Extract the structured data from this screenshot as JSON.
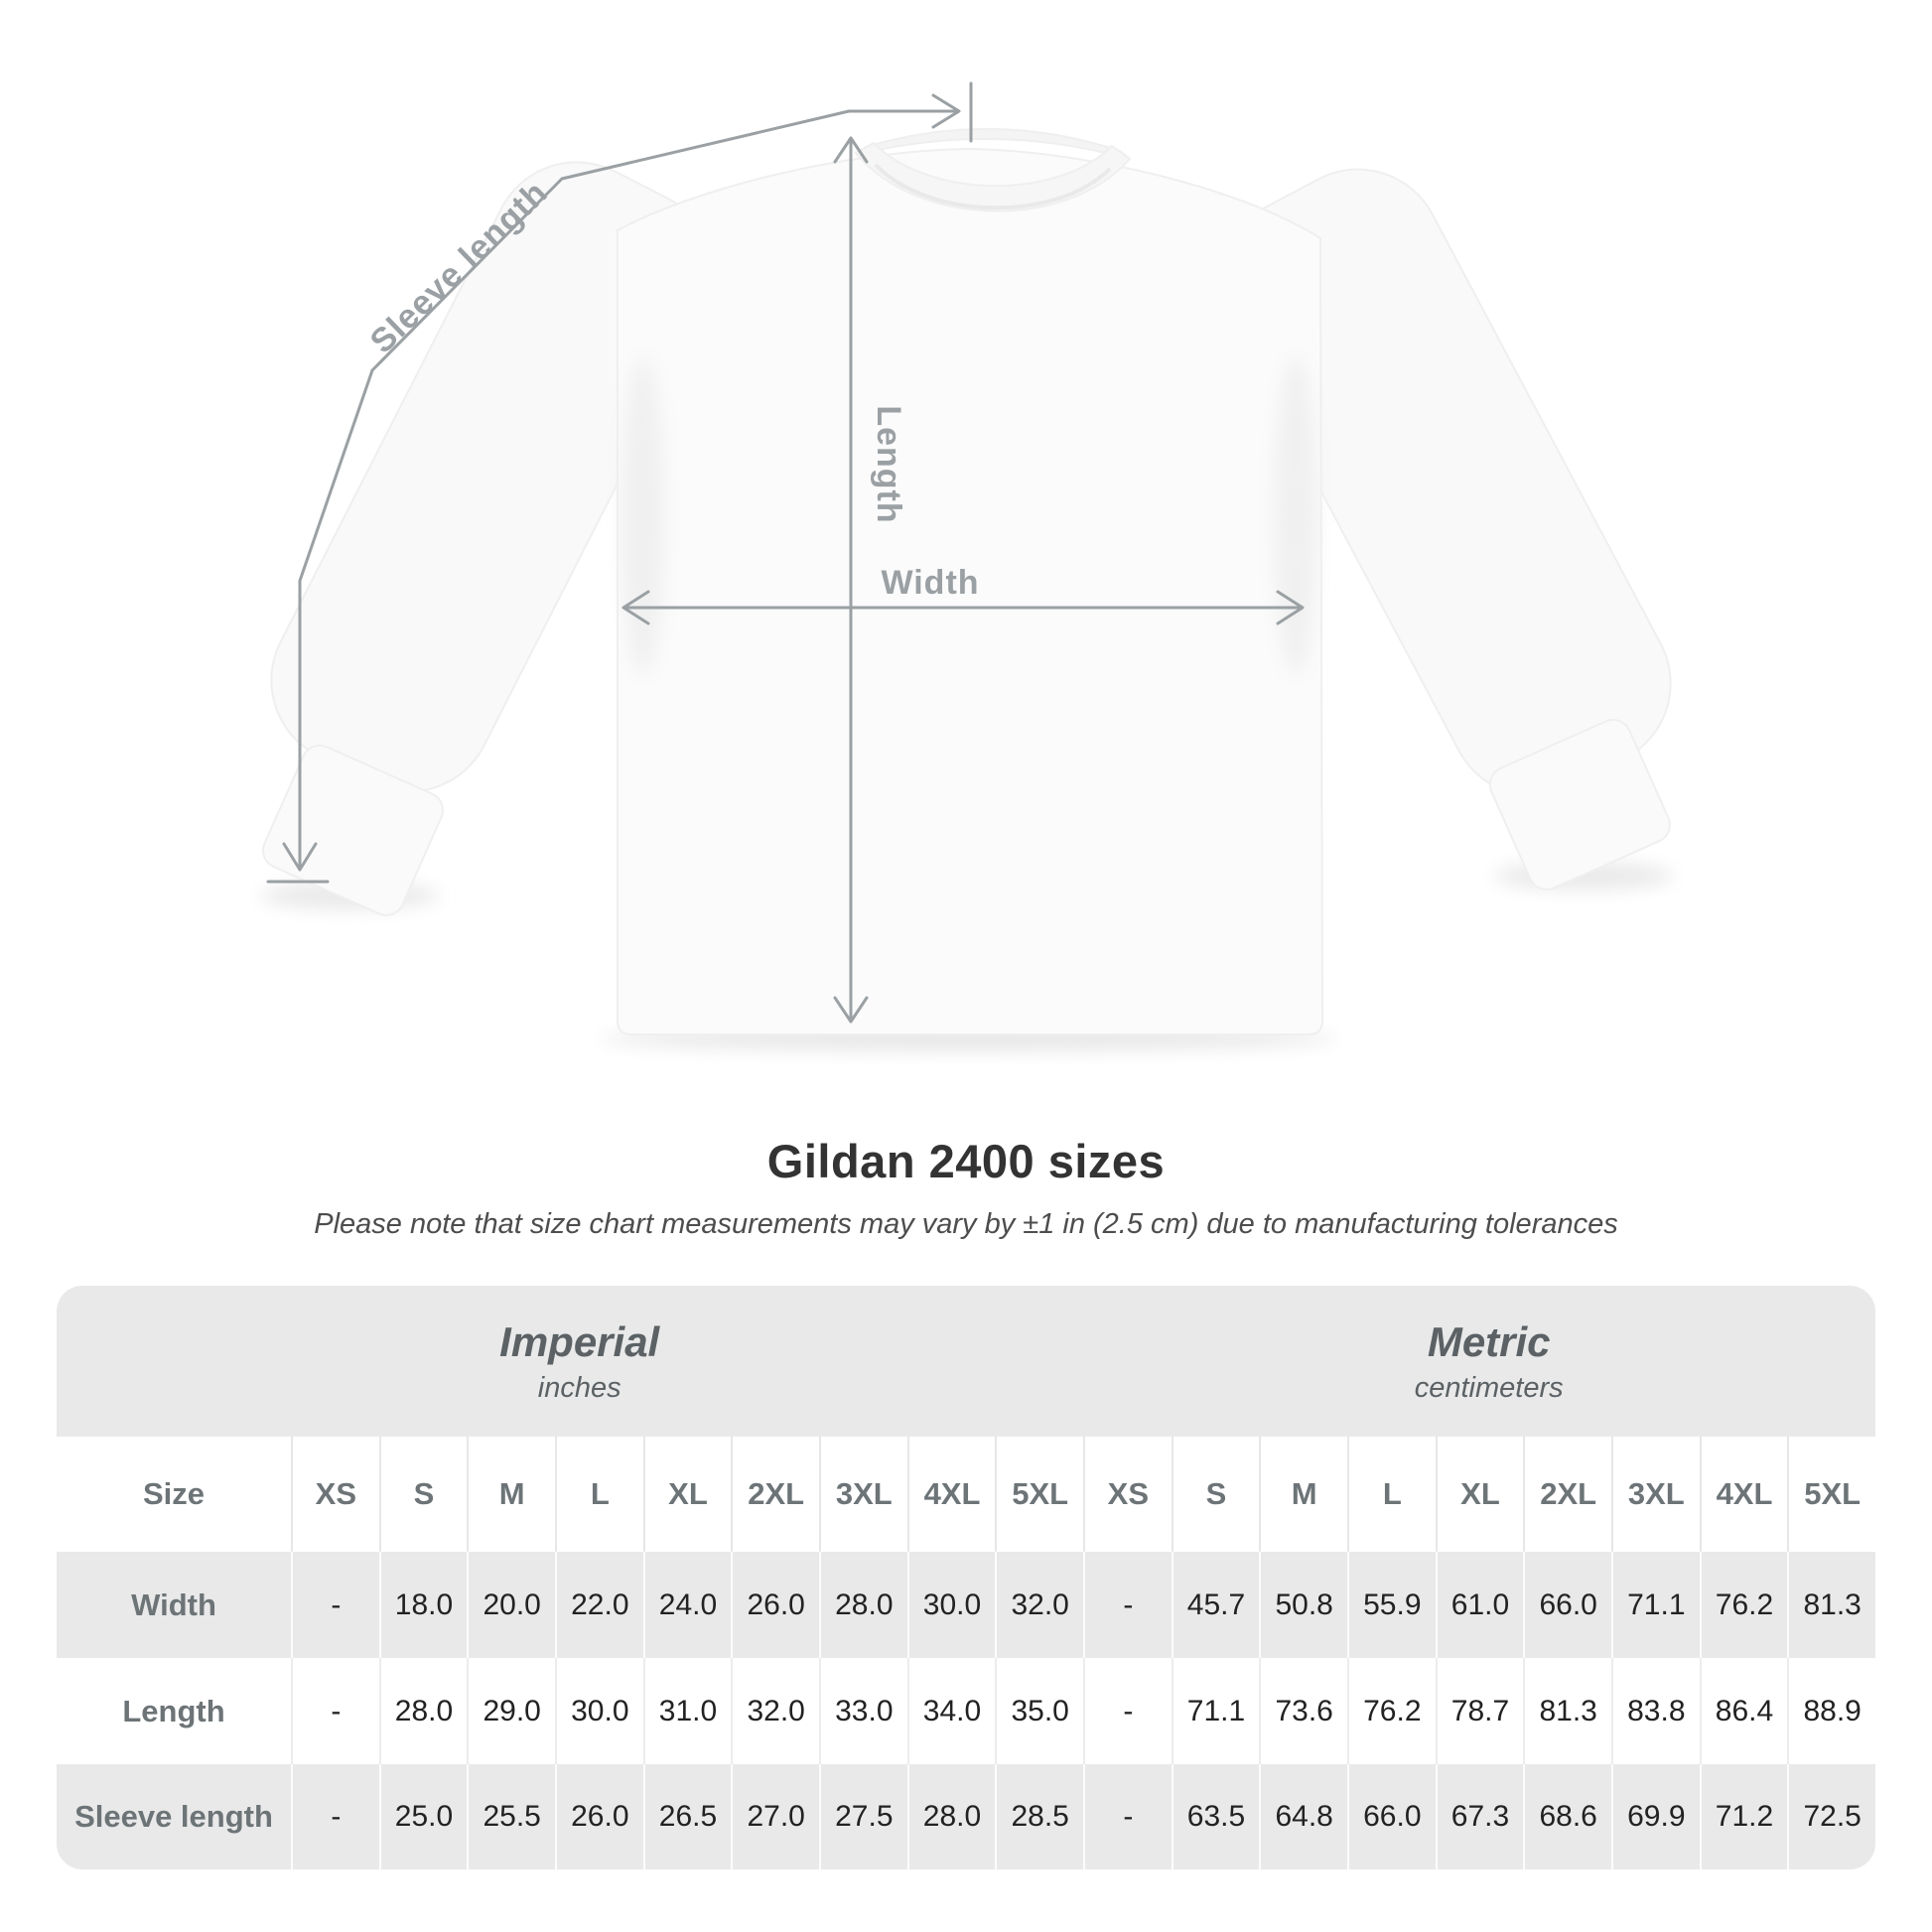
{
  "diagram": {
    "labels": {
      "sleeve_length": "Sleeve length",
      "length": "Length",
      "width": "Width"
    },
    "annotation_color": "#9aa0a3"
  },
  "heading": {
    "title": "Gildan 2400 sizes",
    "note": "Please note that size chart measurements may vary by ±1 in (2.5 cm) due to manufacturing tolerances"
  },
  "size_table": {
    "band_bg_color": "#e9e9e9",
    "unit_groups": [
      {
        "name": "Imperial",
        "unit": "inches"
      },
      {
        "name": "Metric",
        "unit": "centimeters"
      }
    ],
    "size_col_header": "Size",
    "sizes": [
      "XS",
      "S",
      "M",
      "L",
      "XL",
      "2XL",
      "3XL",
      "4XL",
      "5XL"
    ],
    "rows": [
      {
        "label": "Width",
        "imperial": [
          "-",
          "18.0",
          "20.0",
          "22.0",
          "24.0",
          "26.0",
          "28.0",
          "30.0",
          "32.0"
        ],
        "metric": [
          "-",
          "45.7",
          "50.8",
          "55.9",
          "61.0",
          "66.0",
          "71.1",
          "76.2",
          "81.3"
        ]
      },
      {
        "label": "Length",
        "imperial": [
          "-",
          "28.0",
          "29.0",
          "30.0",
          "31.0",
          "32.0",
          "33.0",
          "34.0",
          "35.0"
        ],
        "metric": [
          "-",
          "71.1",
          "73.6",
          "76.2",
          "78.7",
          "81.3",
          "83.8",
          "86.4",
          "88.9"
        ]
      },
      {
        "label": "Sleeve length",
        "imperial": [
          "-",
          "25.0",
          "25.5",
          "26.0",
          "26.5",
          "27.0",
          "27.5",
          "28.0",
          "28.5"
        ],
        "metric": [
          "-",
          "63.5",
          "64.8",
          "66.0",
          "67.3",
          "68.6",
          "69.9",
          "71.2",
          "72.5"
        ]
      }
    ]
  }
}
